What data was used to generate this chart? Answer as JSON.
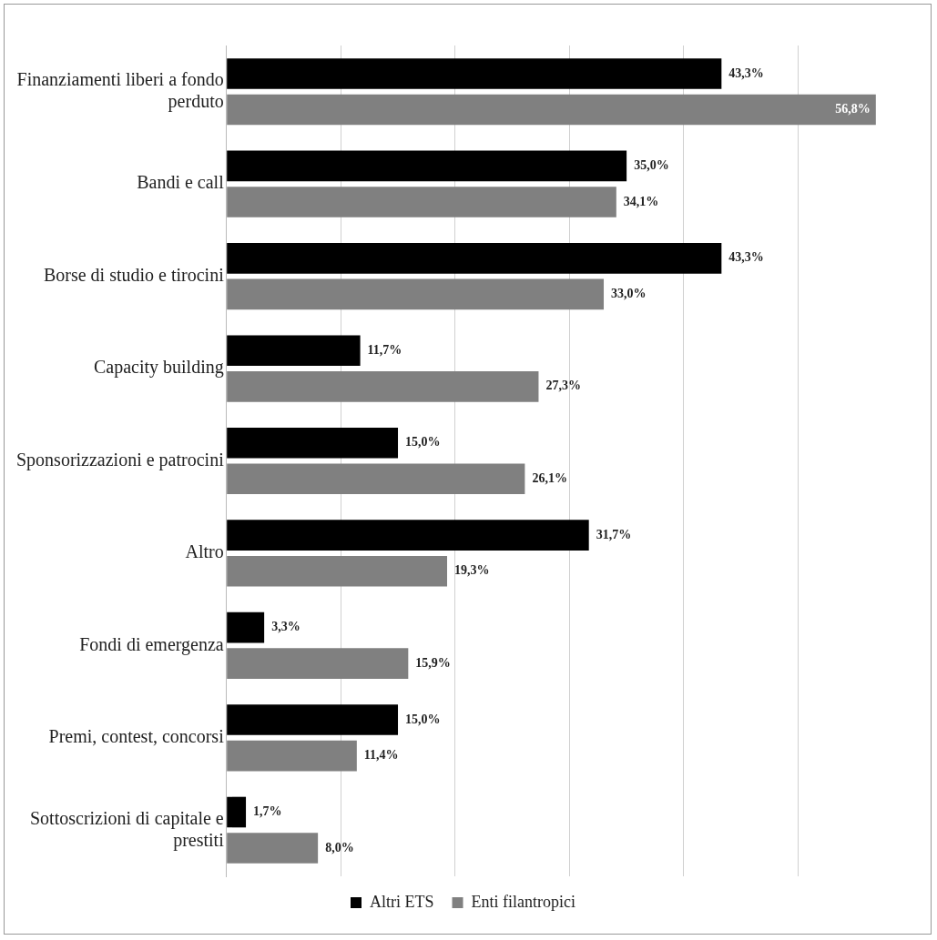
{
  "chart_data": {
    "type": "bar",
    "orientation": "horizontal",
    "categories": [
      "Finanziamenti liberi a fondo perduto",
      "Bandi e call",
      "Borse di studio e tirocini",
      "Capacity building",
      "Sponsorizzazioni e patrocini",
      "Altro",
      "Fondi di emergenza",
      "Premi, contest, concorsi",
      "Sottoscrizioni di capitale e prestiti"
    ],
    "series": [
      {
        "name": "Altri ETS",
        "color": "#000000",
        "values": [
          43.3,
          35.0,
          43.3,
          11.7,
          15.0,
          31.7,
          3.3,
          15.0,
          1.7
        ],
        "value_labels": [
          "43,3%",
          "35,0%",
          "43,3%",
          "11,7%",
          "15,0%",
          "31,7%",
          "3,3%",
          "15,0%",
          "1,7%"
        ]
      },
      {
        "name": "Enti filantropici",
        "color": "#808080",
        "values": [
          56.8,
          34.1,
          33.0,
          27.3,
          26.1,
          19.3,
          15.9,
          11.4,
          8.0
        ],
        "value_labels": [
          "56,8%",
          "34,1%",
          "33,0%",
          "27,3%",
          "26,1%",
          "19,3%",
          "15,9%",
          "11,4%",
          "8,0%"
        ]
      }
    ],
    "xticks": [
      {
        "value": 0,
        "label": null
      },
      {
        "value": 10,
        "label": null
      },
      {
        "value": 20,
        "label": null
      },
      {
        "value": 30,
        "label": null
      },
      {
        "value": 40,
        "label": null
      },
      {
        "value": 50,
        "label": null
      }
    ],
    "grid": "x",
    "legend": "bottom",
    "tick_labels": "y"
  }
}
